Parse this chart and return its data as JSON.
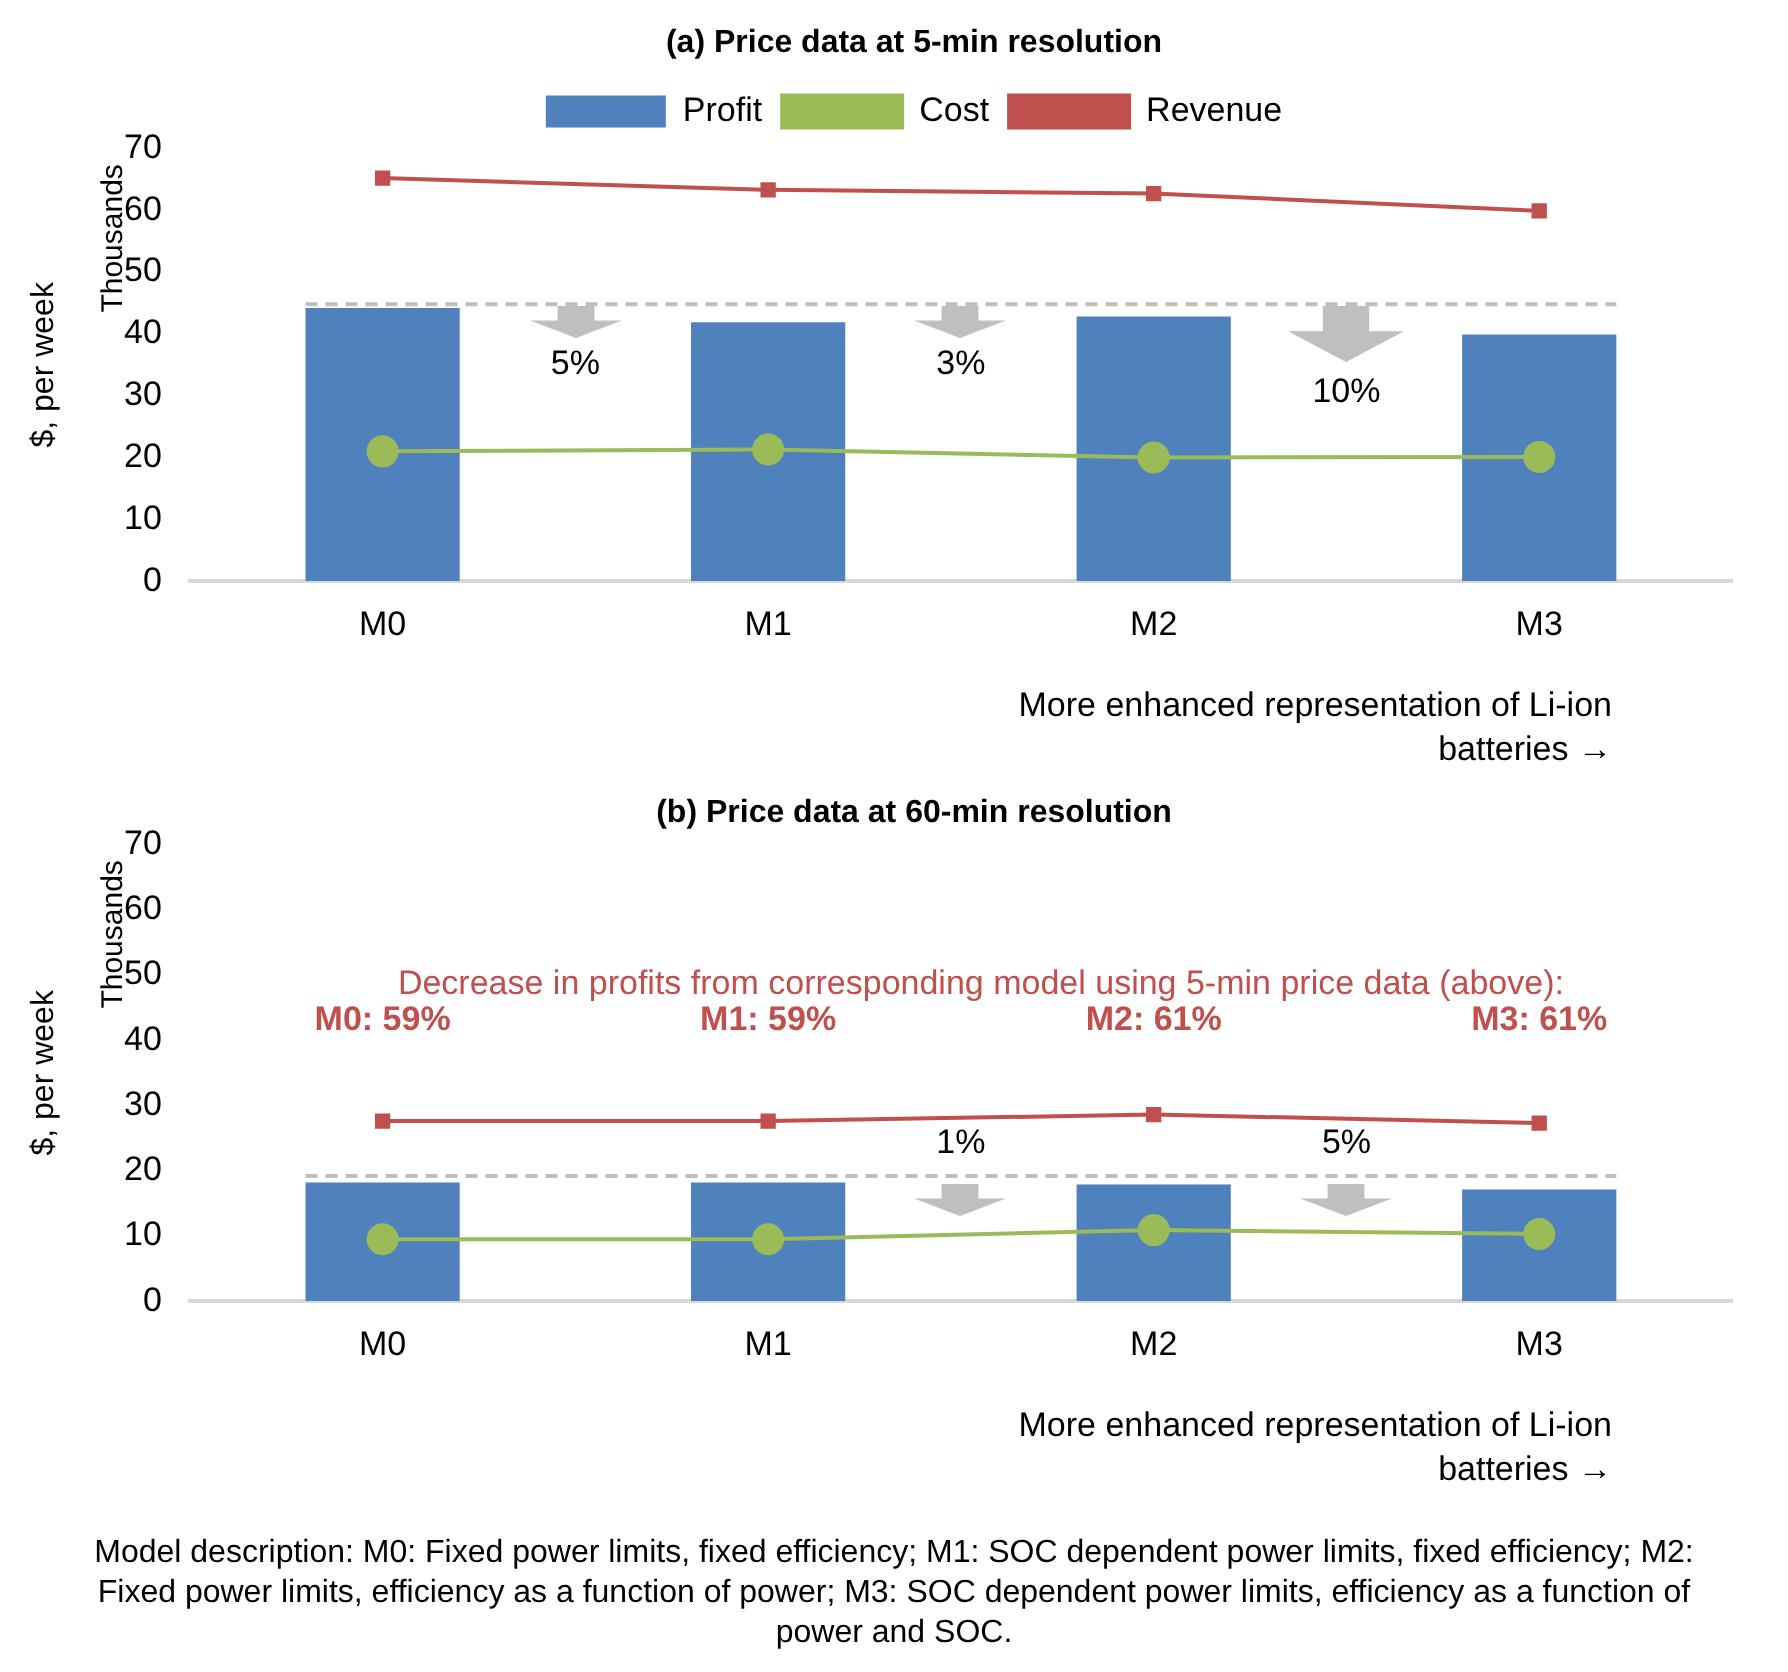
{
  "chart_data": [
    {
      "type": "bar",
      "title": "(a) Price data at 5-min resolution",
      "ylabel": "$, per week",
      "xlabel": "More enhanced representation of Li-ion batteries →",
      "categories": [
        "M0",
        "M1",
        "M2",
        "M3"
      ],
      "series": [
        {
          "name": "Profit",
          "color": "#4f81bd",
          "values": [
            44.2,
            41.9,
            42.8,
            39.9
          ]
        },
        {
          "name": "Cost",
          "type": "line",
          "color": "#9bbb59",
          "marker": "circle",
          "values": [
            21.0,
            21.3,
            20.0,
            20.1
          ]
        },
        {
          "name": "Revenue",
          "type": "line",
          "color": "#c0504d",
          "marker": "square",
          "values": [
            65.2,
            63.3,
            62.7,
            59.9
          ]
        }
      ],
      "ylim": [
        0,
        70
      ],
      "yticks": [
        0,
        10,
        20,
        30,
        40,
        50,
        60,
        70
      ],
      "grid": false,
      "legend": "top",
      "ref_lines": [
        {
          "axis": "y",
          "value": 44.8,
          "color": "#bfbfbf",
          "line_style": "dashed"
        }
      ],
      "annotations": [
        "Thousands",
        "5%",
        "3%",
        "10%"
      ]
    },
    {
      "type": "bar",
      "title": "(b) Price data at 60-min resolution",
      "ylabel": "$, per week",
      "xlabel": "More enhanced representation of Li-ion batteries →",
      "categories": [
        "M0",
        "M1",
        "M2",
        "M3"
      ],
      "series": [
        {
          "color": "#4f81bd",
          "values": [
            18.2,
            18.2,
            17.9,
            17.1
          ]
        },
        {
          "type": "line",
          "color": "#9bbb59",
          "marker": "circle",
          "values": [
            9.5,
            9.5,
            10.9,
            10.3
          ]
        },
        {
          "type": "line",
          "color": "#c0504d",
          "marker": "square",
          "values": [
            27.6,
            27.6,
            28.6,
            27.3
          ]
        }
      ],
      "ylim": [
        0,
        70
      ],
      "yticks": [
        0,
        10,
        20,
        30,
        40,
        50,
        60,
        70
      ],
      "grid": false,
      "legend": false,
      "ref_lines": [
        {
          "axis": "y",
          "value": 19.2,
          "color": "#bfbfbf",
          "line_style": "dashed"
        }
      ],
      "annotations": [
        "Thousands",
        "Decrease in profits from corresponding model using 5-min price data (above):",
        "M0: 59%",
        "M1: 59%",
        "M2: 61%",
        "M3: 61%",
        "1%",
        "5%",
        "Model description: M0: Fixed power limits, fixed efficiency; M1: SOC dependent power limits, fixed efficiency; M2: Fixed power limits, efficiency as a function of power; M3: SOC dependent power limits, efficiency as a function of power and SOC."
      ]
    }
  ]
}
